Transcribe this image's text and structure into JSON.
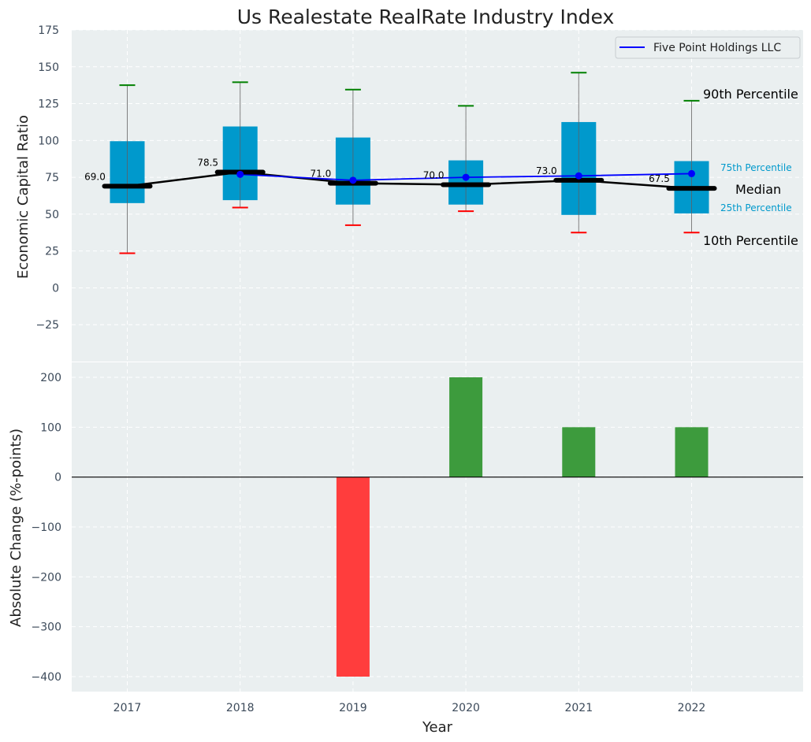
{
  "chart_data": [
    {
      "type": "box",
      "title": "Us Realestate RealRate Industry Index",
      "ylabel": "Economic Capital Ratio",
      "ylim": [
        -50,
        175
      ],
      "yticks": [
        -25,
        0,
        25,
        50,
        75,
        100,
        125,
        150,
        175
      ],
      "categories": [
        "2017",
        "2018",
        "2019",
        "2020",
        "2021",
        "2022"
      ],
      "boxes": [
        {
          "p10": 23.5,
          "p25": 57.5,
          "median": 69.0,
          "p75": 99.5,
          "p90": 137.5
        },
        {
          "p10": 54.5,
          "p25": 59.5,
          "median": 78.5,
          "p75": 109.5,
          "p90": 139.5
        },
        {
          "p10": 42.5,
          "p25": 56.5,
          "median": 71.0,
          "p75": 102.0,
          "p90": 134.5
        },
        {
          "p10": 52.0,
          "p25": 56.5,
          "median": 70.0,
          "p75": 86.5,
          "p90": 123.5
        },
        {
          "p10": 37.5,
          "p25": 49.5,
          "median": 73.0,
          "p75": 112.5,
          "p90": 146.0
        },
        {
          "p10": 37.5,
          "p25": 50.5,
          "median": 67.5,
          "p75": 86.0,
          "p90": 127.0
        }
      ],
      "median_labels": [
        "69.0",
        "78.5",
        "71.0",
        "70.0",
        "73.0",
        "67.5"
      ],
      "series": [
        {
          "name": "Five Point Holdings LLC",
          "values": [
            null,
            77.0,
            73.0,
            75.0,
            76.0,
            77.5
          ],
          "color": "#0000ff"
        }
      ],
      "annotations": {
        "p90": "90th Percentile",
        "p75": "75th Percentile",
        "median": "Median",
        "p25": "25th Percentile",
        "p10": "10th Percentile"
      },
      "legend": "top-right",
      "grid": true
    },
    {
      "type": "bar",
      "xlabel": "Year",
      "ylabel": "Absolute Change (%-points)",
      "ylim": [
        -430,
        230
      ],
      "yticks": [
        -400,
        -300,
        -200,
        -100,
        0,
        100,
        200
      ],
      "categories": [
        "2017",
        "2018",
        "2019",
        "2020",
        "2021",
        "2022"
      ],
      "values": [
        0,
        0,
        -400,
        200,
        100,
        100
      ],
      "positive_color": "#3d9b3d",
      "negative_color": "#ff3d3d",
      "grid": true
    }
  ],
  "colors": {
    "box": "#0099cc",
    "whisker": "#808080",
    "p90_cap": "#008000",
    "p10_cap": "#ff0000",
    "median": "#000000",
    "panel_bg": "#eaeff0"
  }
}
